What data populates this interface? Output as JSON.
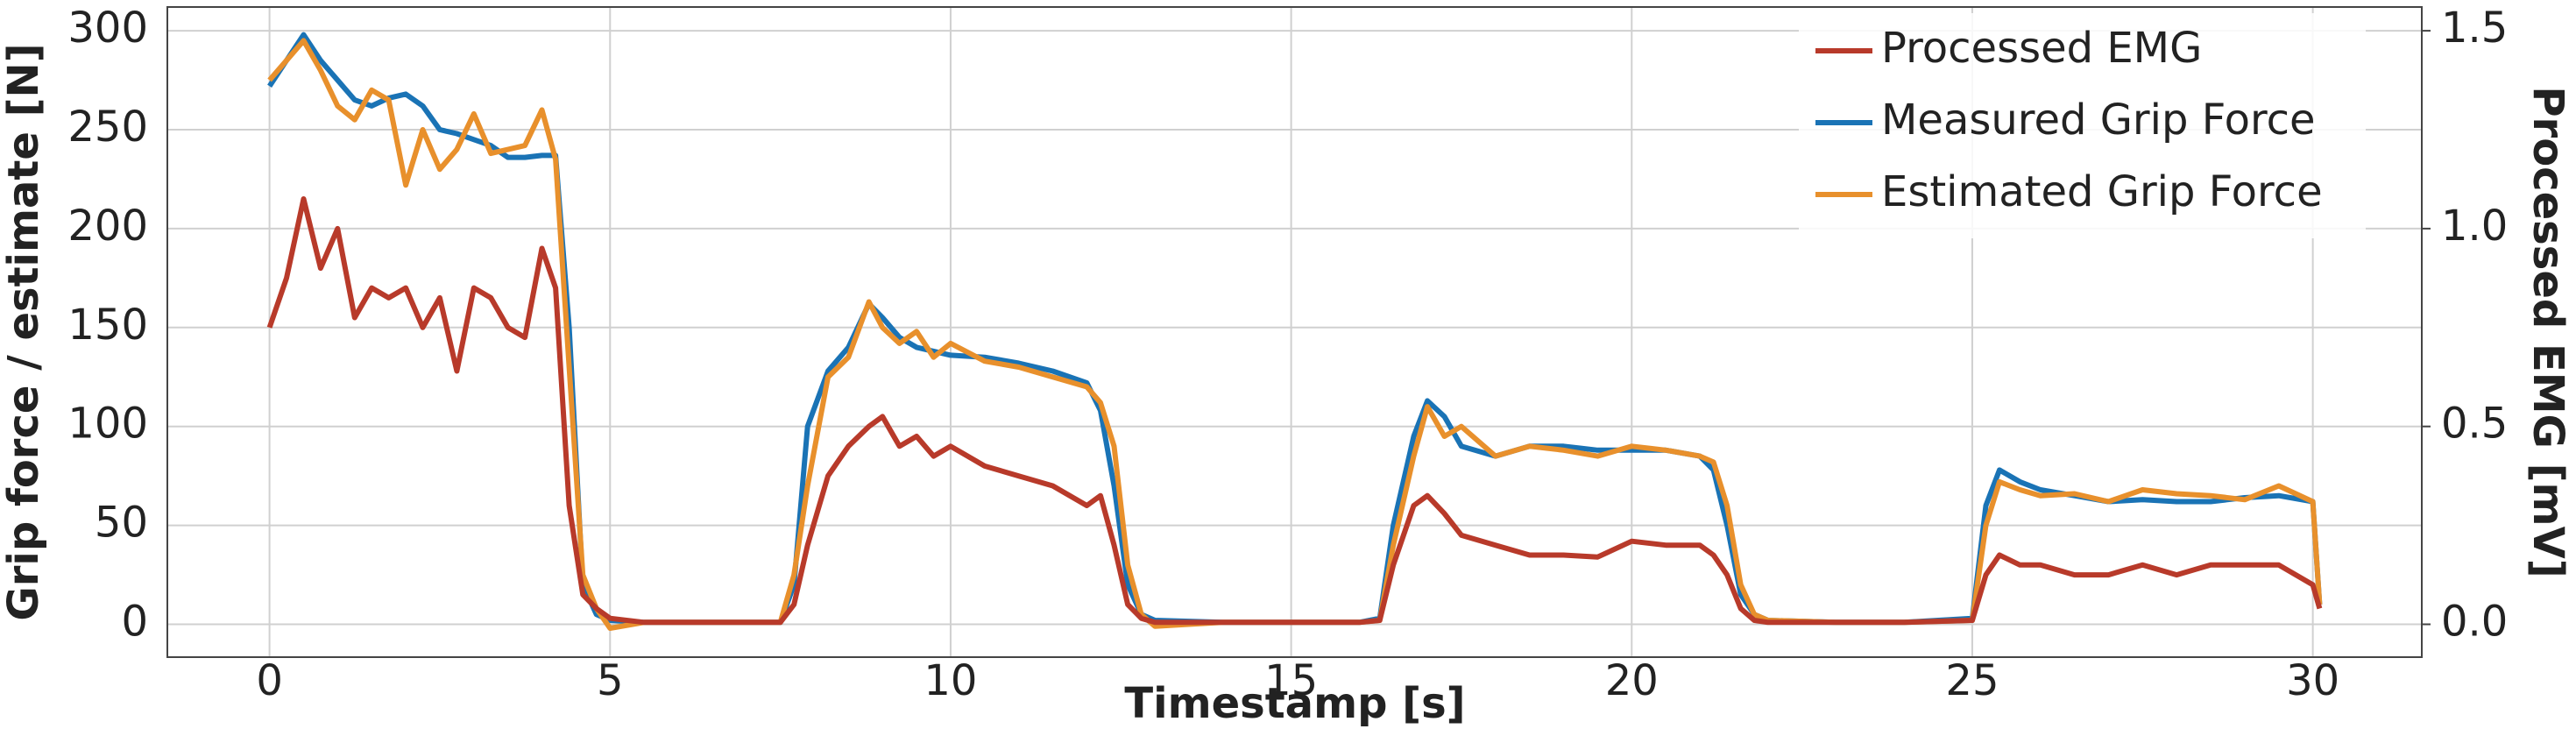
{
  "chart_data": {
    "type": "line",
    "xlabel": "Timestamp [s]",
    "ylabel": "Grip force / estimate [N]",
    "y2label": "Processed EMG [mV]",
    "legend": "upper right",
    "grid": true,
    "x": [
      0,
      0.25,
      0.5,
      0.75,
      1,
      1.25,
      1.5,
      1.75,
      2,
      2.25,
      2.5,
      2.75,
      3,
      3.25,
      3.5,
      3.75,
      4,
      4.2,
      4.4,
      4.6,
      4.8,
      5,
      5.5,
      6,
      6.5,
      7,
      7.5,
      7.7,
      7.9,
      8.2,
      8.5,
      8.8,
      9,
      9.25,
      9.5,
      9.75,
      10,
      10.5,
      11,
      11.5,
      12,
      12.2,
      12.4,
      12.6,
      12.8,
      13,
      14,
      15,
      16,
      16.3,
      16.5,
      16.8,
      17,
      17.25,
      17.5,
      18,
      18.5,
      19,
      19.5,
      20,
      20.5,
      21,
      21.2,
      21.4,
      21.6,
      21.8,
      22,
      23,
      24,
      25,
      25.2,
      25.4,
      25.7,
      26,
      26.5,
      27,
      27.5,
      28,
      28.5,
      29,
      29.5,
      30,
      30.1
    ],
    "series": [
      {
        "name": "Processed EMG",
        "color": "#b83a2a",
        "axis": "y2",
        "values": [
          0.75,
          0.875,
          1.075,
          0.9,
          1.0,
          0.775,
          0.85,
          0.825,
          0.85,
          0.75,
          0.825,
          0.64,
          0.85,
          0.825,
          0.75,
          0.725,
          0.95,
          0.85,
          0.3,
          0.075,
          0.04,
          0.015,
          0.005,
          0.005,
          0.005,
          0.005,
          0.005,
          0.05,
          0.2,
          0.375,
          0.45,
          0.5,
          0.525,
          0.45,
          0.475,
          0.425,
          0.45,
          0.4,
          0.375,
          0.35,
          0.3,
          0.325,
          0.2,
          0.05,
          0.015,
          0.005,
          0.005,
          0.005,
          0.005,
          0.01,
          0.15,
          0.3,
          0.325,
          0.28,
          0.225,
          0.2,
          0.175,
          0.175,
          0.17,
          0.21,
          0.2,
          0.2,
          0.175,
          0.125,
          0.04,
          0.01,
          0.005,
          0.005,
          0.005,
          0.01,
          0.125,
          0.175,
          0.15,
          0.15,
          0.125,
          0.125,
          0.15,
          0.125,
          0.15,
          0.15,
          0.15,
          0.1,
          0.04
        ]
      },
      {
        "name": "Measured Grip Force",
        "color": "#1a73b5",
        "values": [
          272,
          285,
          298,
          285,
          275,
          265,
          262,
          266,
          268,
          262,
          250,
          248,
          245,
          242,
          236,
          236,
          237,
          237,
          150,
          20,
          5,
          2,
          1,
          1,
          1,
          1,
          1,
          20,
          100,
          128,
          140,
          162,
          155,
          145,
          140,
          138,
          136,
          135,
          132,
          128,
          122,
          108,
          70,
          20,
          5,
          2,
          1,
          1,
          1,
          3,
          50,
          95,
          113,
          105,
          90,
          85,
          90,
          90,
          88,
          88,
          88,
          85,
          78,
          50,
          15,
          5,
          2,
          1,
          1,
          3,
          60,
          78,
          72,
          68,
          65,
          62,
          63,
          62,
          62,
          64,
          65,
          62,
          10
        ]
      },
      {
        "name": "Estimated Grip Force",
        "color": "#e8902c",
        "values": [
          275,
          285,
          295,
          280,
          262,
          255,
          270,
          265,
          222,
          250,
          230,
          240,
          258,
          238,
          240,
          242,
          260,
          235,
          130,
          25,
          8,
          -2,
          1,
          1,
          1,
          1,
          1,
          25,
          70,
          125,
          135,
          163,
          150,
          142,
          148,
          135,
          142,
          133,
          130,
          125,
          120,
          112,
          90,
          30,
          5,
          -1,
          1,
          1,
          1,
          2,
          40,
          85,
          110,
          95,
          100,
          85,
          90,
          88,
          85,
          90,
          88,
          85,
          82,
          60,
          20,
          5,
          2,
          1,
          1,
          2,
          50,
          72,
          68,
          65,
          66,
          62,
          68,
          66,
          65,
          63,
          70,
          62,
          10
        ]
      }
    ],
    "xlim": [
      -1.5,
      31.6
    ],
    "xticks": [
      0,
      5,
      10,
      15,
      20,
      25,
      30
    ],
    "ylim": [
      -16.6,
      312
    ],
    "yticks": [
      0,
      50,
      100,
      150,
      200,
      250,
      300
    ],
    "y2lim": [
      -0.083,
      1.56
    ],
    "y2ticks": [
      {
        "value": 0,
        "label": "0.0"
      },
      0.5,
      {
        "value": 1,
        "label": "1.0"
      },
      1.5
    ]
  }
}
